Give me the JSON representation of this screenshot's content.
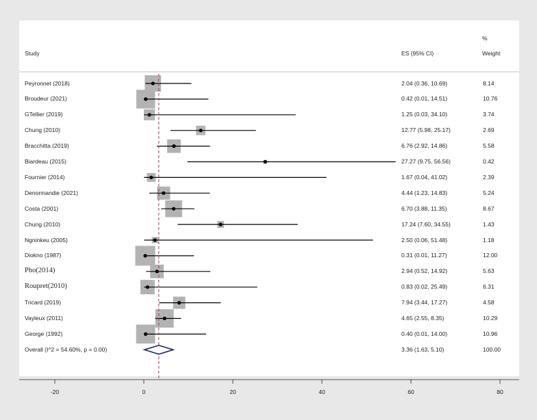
{
  "headers": {
    "study": "Study",
    "es": "ES (95% CI)",
    "weight_pct": "%",
    "weight": "Weight"
  },
  "chart_data": {
    "type": "forest",
    "xlim": [
      -25,
      85
    ],
    "xticks": [
      -20,
      0,
      20,
      40,
      60,
      80
    ],
    "reference_line": 3.36,
    "colors": {
      "box": "#b3b3b3",
      "line": "#000000",
      "diamond": "#1a2a6e",
      "ref": "#b03050"
    },
    "studies": [
      {
        "name": "Peyronnet (2018)",
        "es": 2.04,
        "lo": 0.36,
        "hi": 10.69,
        "es_text": "2.04 (0.36, 10.69)",
        "weight": "8.14",
        "w": 8.14
      },
      {
        "name": "Broudeur (2021)",
        "es": 0.42,
        "lo": 0.01,
        "hi": 14.51,
        "es_text": "0.42 (0.01, 14.51)",
        "weight": "10.76",
        "w": 10.76
      },
      {
        "name": "GTellier (2019)",
        "es": 1.25,
        "lo": 0.03,
        "hi": 34.1,
        "es_text": "1.25 (0.03, 34.10)",
        "weight": "3.74",
        "w": 3.74
      },
      {
        "name": "Chung (2010)",
        "es": 12.77,
        "lo": 5.98,
        "hi": 25.17,
        "es_text": "12.77 (5.98, 25.17)",
        "weight": "2.69",
        "w": 2.69
      },
      {
        "name": "Bracchitta (2019)",
        "es": 6.76,
        "lo": 2.92,
        "hi": 14.86,
        "es_text": "6.76 (2.92, 14.86)",
        "weight": "5.58",
        "w": 5.58
      },
      {
        "name": "Biardeau (2015)",
        "es": 27.27,
        "lo": 9.75,
        "hi": 56.56,
        "es_text": "27.27 (9.75, 56.56)",
        "weight": "0.42",
        "w": 0.42
      },
      {
        "name": "Fournier (2014)",
        "es": 1.67,
        "lo": 0.04,
        "hi": 41.02,
        "es_text": "1.67 (0.04, 41.02)",
        "weight": "2.39",
        "w": 2.39
      },
      {
        "name": "Denormandie (2021)",
        "es": 4.44,
        "lo": 1.23,
        "hi": 14.83,
        "es_text": "4.44 (1.23, 14.83)",
        "weight": "5.24",
        "w": 5.24
      },
      {
        "name": "Costa (2001)",
        "es": 6.7,
        "lo": 3.88,
        "hi": 11.35,
        "es_text": "6.70 (3.88, 11.35)",
        "weight": "8.67",
        "w": 8.67
      },
      {
        "name": "Chung (2010)",
        "es": 17.24,
        "lo": 7.6,
        "hi": 34.55,
        "es_text": "17.24 (7.60, 34.55)",
        "weight": "1.43",
        "w": 1.43
      },
      {
        "name": "Ngninkeu (2005)",
        "es": 2.5,
        "lo": 0.06,
        "hi": 51.48,
        "es_text": "2.50 (0.06, 51.48)",
        "weight": "1.18",
        "w": 1.18
      },
      {
        "name": "Diokno (1987)",
        "es": 0.31,
        "lo": 0.01,
        "hi": 11.27,
        "es_text": "0.31 (0.01, 11.27)",
        "weight": "12.00",
        "w": 12.0
      },
      {
        "name": "Pho(2014)",
        "es": 2.94,
        "lo": 0.52,
        "hi": 14.92,
        "es_text": "2.94 (0.52, 14.92)",
        "weight": "5.63",
        "w": 5.63,
        "serif": true
      },
      {
        "name": "Roupret(2010)",
        "es": 0.83,
        "lo": 0.02,
        "hi": 25.49,
        "es_text": "0.83 (0.02, 25.49)",
        "weight": "6.31",
        "w": 6.31,
        "serif": true
      },
      {
        "name": "Tricard (2019)",
        "es": 7.94,
        "lo": 3.44,
        "hi": 17.27,
        "es_text": "7.94 (3.44, 17.27)",
        "weight": "4.58",
        "w": 4.58
      },
      {
        "name": "Vayleux (2011)",
        "es": 4.65,
        "lo": 2.55,
        "hi": 8.35,
        "es_text": "4.65 (2.55, 8.35)",
        "weight": "10.29",
        "w": 10.29
      },
      {
        "name": "George (1992)",
        "es": 0.4,
        "lo": 0.01,
        "hi": 14.0,
        "es_text": "0.40 (0.01, 14.00)",
        "weight": "10.96",
        "w": 10.96
      }
    ],
    "overall": {
      "name": "Overall  (I^2 = 54.60%, p = 0.00)",
      "es": 3.36,
      "lo": 1.63,
      "hi": 5.1,
      "es_text": "3.36 (1.63, 5.10)",
      "weight": "100.00"
    }
  }
}
